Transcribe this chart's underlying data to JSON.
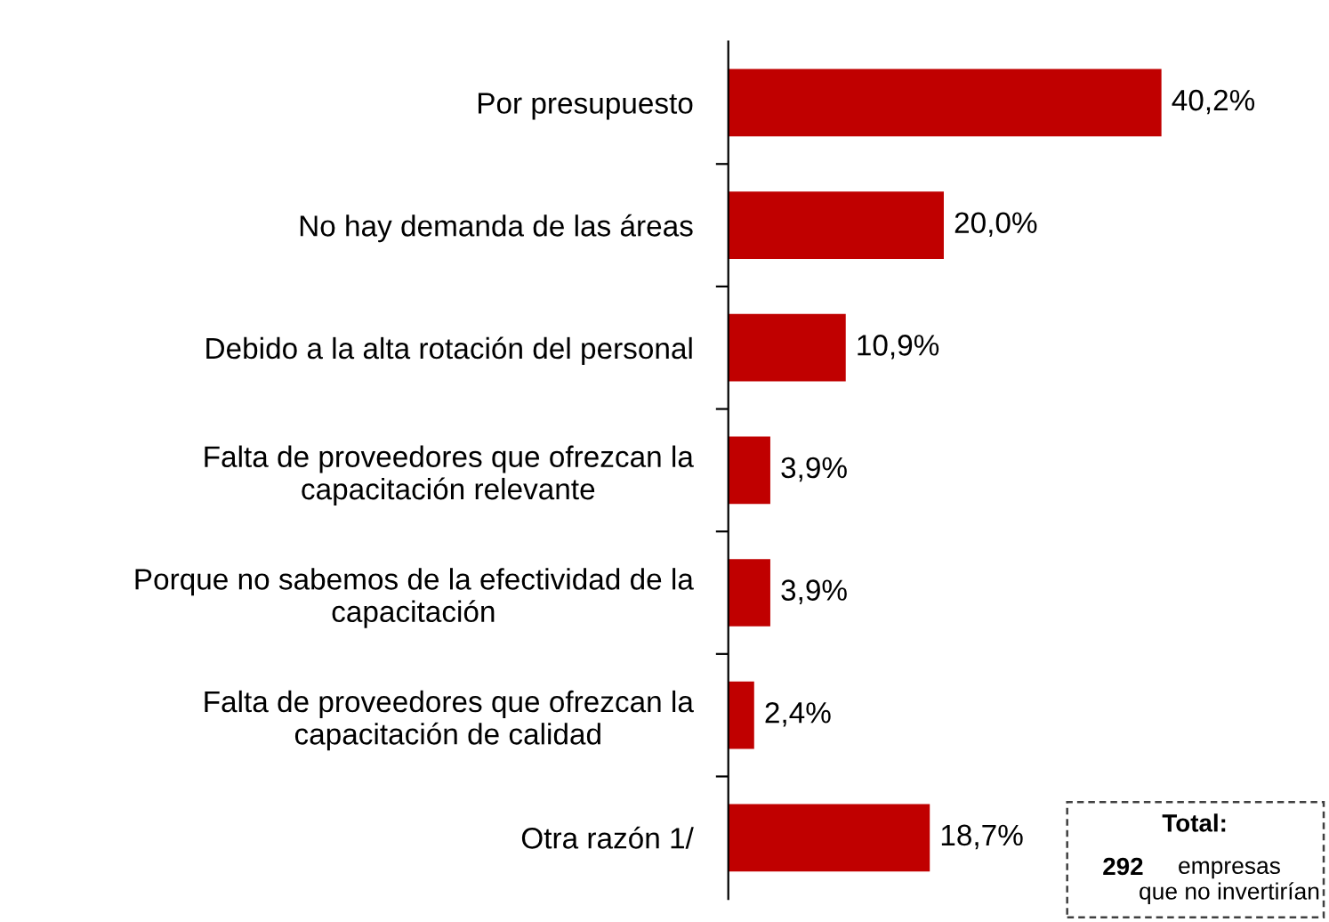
{
  "chart_data": {
    "type": "bar",
    "orientation": "horizontal",
    "categories": [
      "Por presupuesto",
      "No hay demanda de las áreas",
      "Debido a la alta rotación del personal",
      "Falta de proveedores que ofrezcan la\ncapacitación relevante",
      "Porque no sabemos de la efectividad de la\ncapacitación",
      "Falta de proveedores que ofrezcan la\ncapacitación de calidad",
      "Otra razón 1/"
    ],
    "values": [
      40.2,
      20.0,
      10.9,
      3.9,
      3.9,
      2.4,
      18.7
    ],
    "value_labels": [
      "40,2%",
      "20,0%",
      "10,9%",
      "3,9%",
      "3,9%",
      "2,4%",
      "18,7%"
    ],
    "color": "#c00000",
    "annotations": [
      "Total:",
      "292",
      "empresas\nque no invertirían"
    ],
    "grid": false,
    "legend": false
  }
}
